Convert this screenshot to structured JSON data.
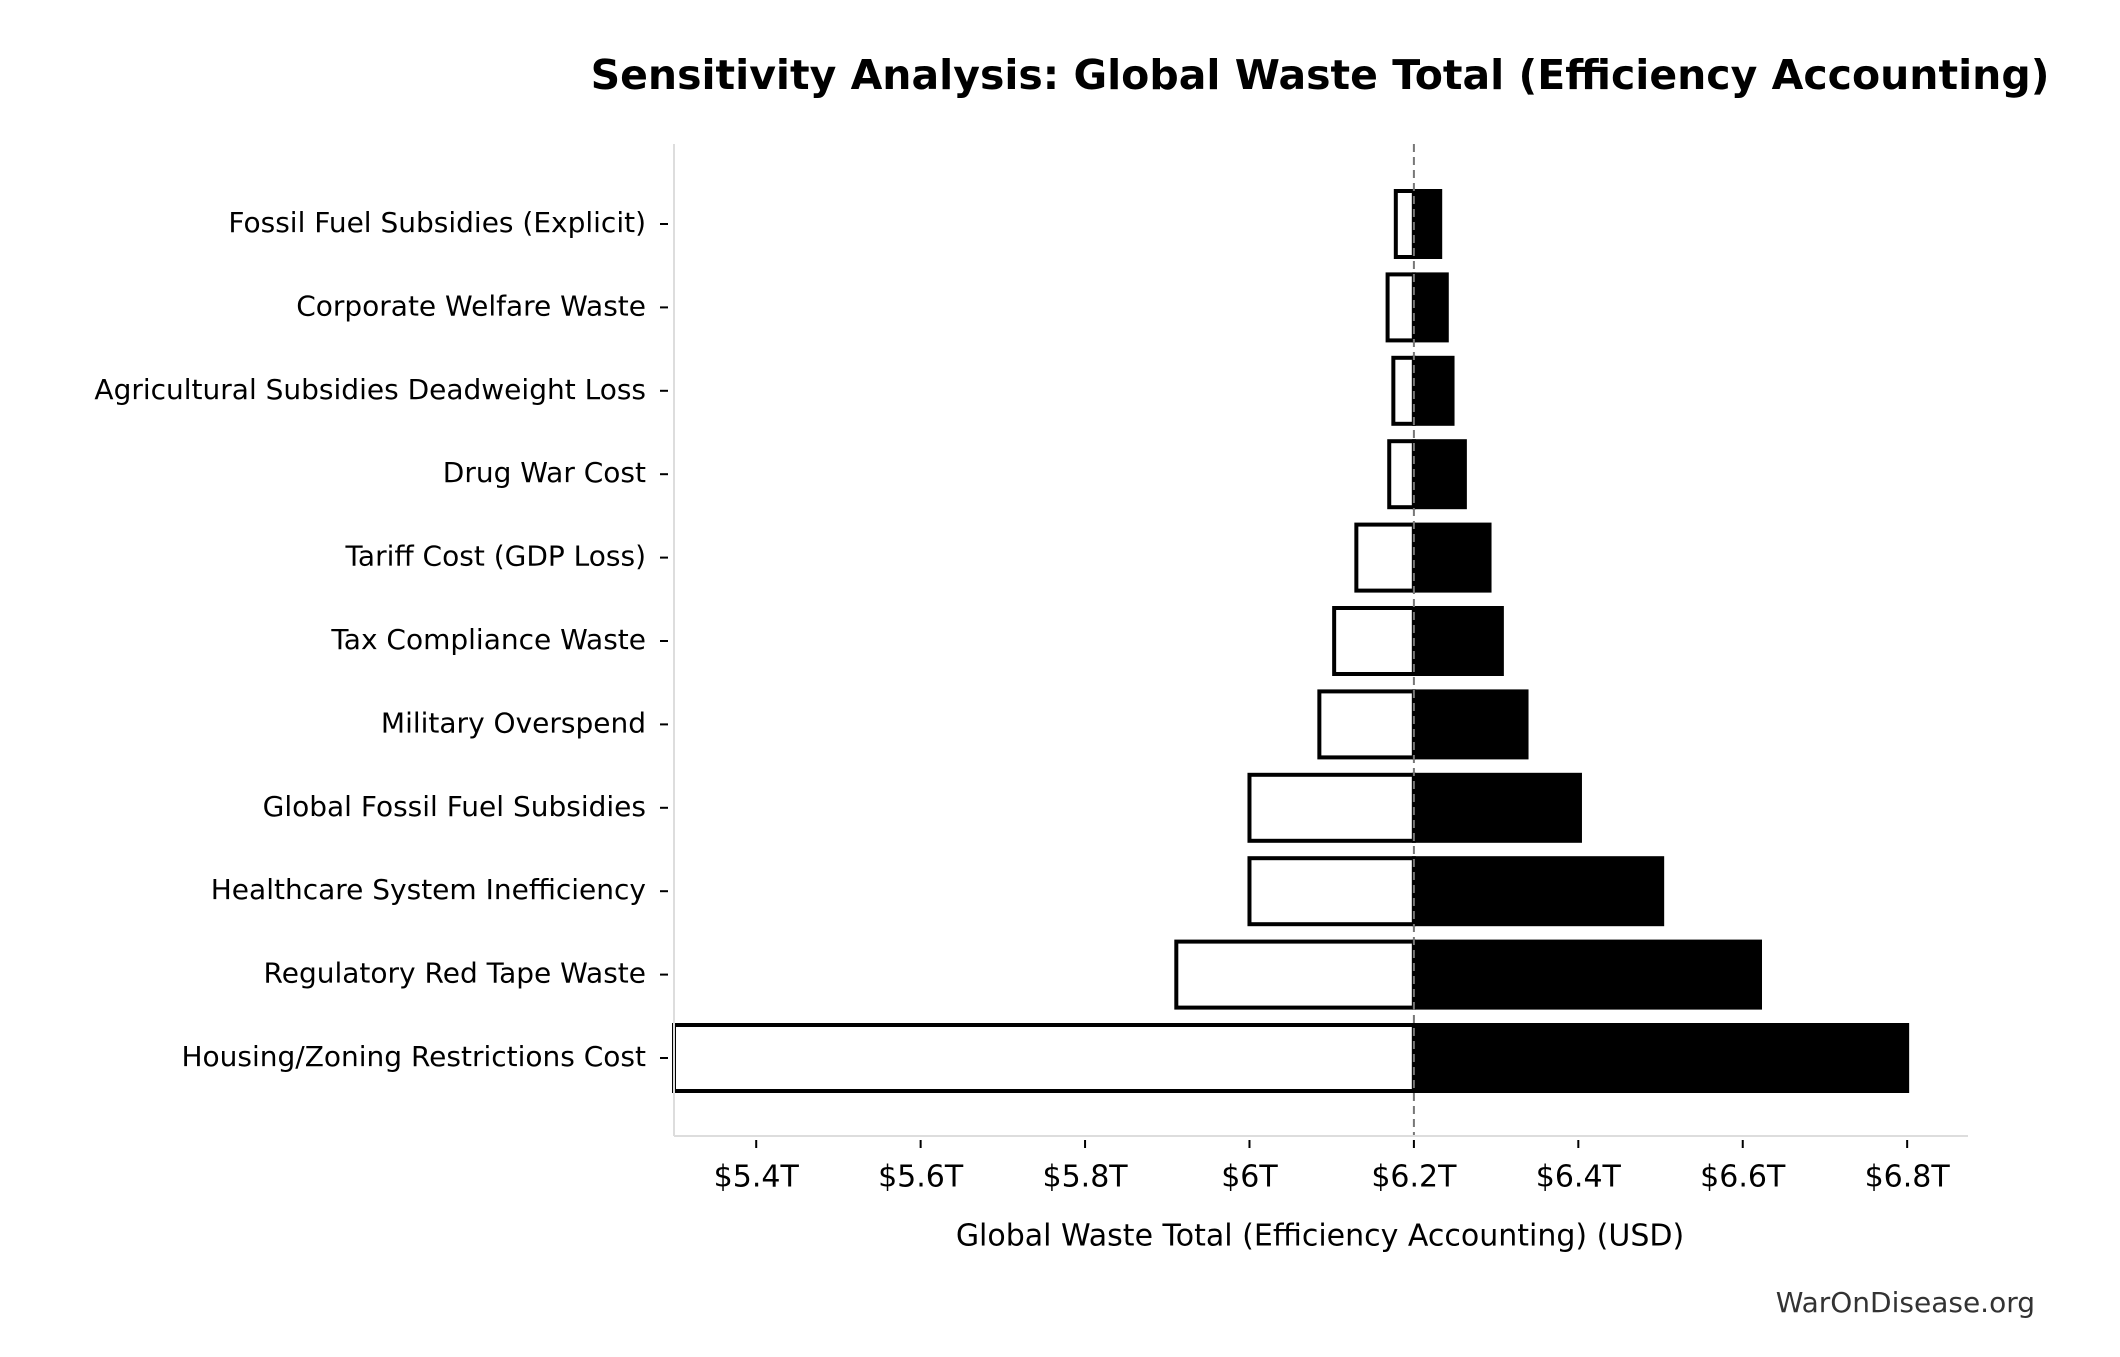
{
  "chart_data": {
    "type": "tornado",
    "title": "Sensitivity Analysis: Global Waste Total (Efficiency Accounting)",
    "x_label": "Global Waste Total (Efficiency Accounting) (USD)",
    "source": "WarOnDisease.org",
    "categories": [
      "Fossil Fuel Subsidies (Explicit)",
      "Corporate Welfare Waste",
      "Agricultural Subsidies Deadweight Loss",
      "Drug War Cost",
      "Tariff Cost (GDP Loss)",
      "Tax Compliance Waste",
      "Military Overspend",
      "Global Fossil Fuel Subsidies",
      "Healthcare System Inefficiency",
      "Regulatory Red Tape Waste",
      "Housing/Zoning Restrictions Cost"
    ],
    "base": 6200000000000,
    "series": [
      {
        "color": "#ffffff",
        "values": [
          6178000000000,
          6168000000000,
          6175000000000,
          6170000000000,
          6130000000000,
          6103000000000,
          6085000000000,
          6000000000000,
          6000000000000,
          5911000000000,
          5300000000000
        ]
      },
      {
        "color": "#000000",
        "values": [
          6232000000000,
          6240000000000,
          6247000000000,
          6262000000000,
          6292000000000,
          6307000000000,
          6337000000000,
          6402000000000,
          6502000000000,
          6621000000000,
          6800000000000
        ]
      }
    ],
    "xlim": [
      5300000000000,
      6874000000000
    ],
    "xticks": [
      {
        "value": 5400000000000,
        "label": "$5.4T"
      },
      {
        "value": 5600000000000,
        "label": "$5.6T"
      },
      {
        "value": 5800000000000,
        "label": "$5.8T"
      },
      {
        "value": 6000000000000,
        "label": "$6T"
      },
      {
        "value": 6200000000000,
        "label": "$6.2T"
      },
      {
        "value": 6400000000000,
        "label": "$6.4T"
      },
      {
        "value": 6600000000000,
        "label": "$6.6T"
      },
      {
        "value": 6800000000000,
        "label": "$6.8T"
      }
    ]
  }
}
